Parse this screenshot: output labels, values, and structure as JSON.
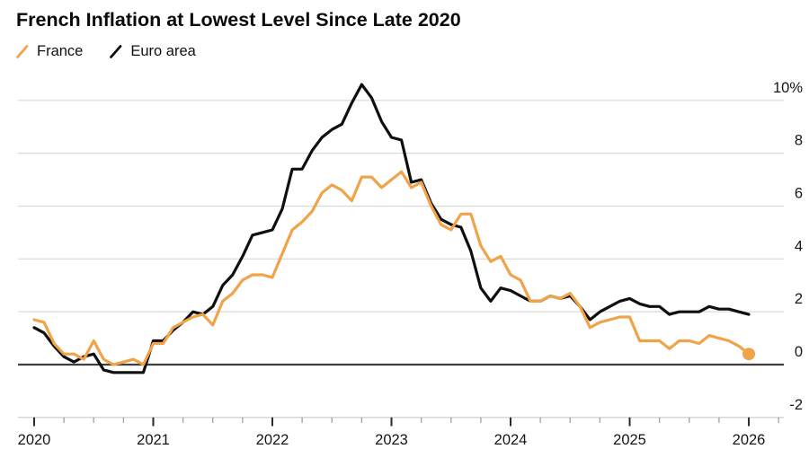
{
  "header": {
    "title": "French Inflation at Lowest Level Since Late 2020"
  },
  "legend": [
    {
      "label": "France",
      "color": "#F0A348"
    },
    {
      "label": "Euro area",
      "color": "#0f0f0f"
    }
  ],
  "colors": {
    "france": "#F0A348",
    "euro_area": "#0f0f0f",
    "gridline": "#d8d8d8",
    "zero_line": "#3f3f3f",
    "major_tick": "#2a2a2a",
    "minor_tick": "#a8a8a8",
    "axis_base": "#d2d2d2"
  },
  "chart_data": {
    "type": "line",
    "title": "French Inflation at Lowest Level Since Late 2020",
    "unit": "percent, year-over-year",
    "frequency": "monthly",
    "x_start": "2020-01",
    "x_end": "2026-01",
    "x_tick_labels": [
      "2020",
      "2021",
      "2022",
      "2023",
      "2024",
      "2025",
      "2026"
    ],
    "y_ticks": [
      10,
      8,
      6,
      4,
      2,
      0,
      -2
    ],
    "y_tick_labels": [
      "10%",
      "8",
      "6",
      "4",
      "2",
      "0",
      "-2"
    ],
    "ylim": [
      -2,
      10.6
    ],
    "grid": "horizontal",
    "zero_line": true,
    "legend_position": "top-left",
    "series": [
      {
        "name": "France",
        "color": "#F0A348",
        "end_marker": true,
        "values": [
          1.7,
          1.6,
          0.8,
          0.4,
          0.4,
          0.2,
          0.9,
          0.2,
          0.0,
          0.1,
          0.2,
          0.0,
          0.8,
          0.8,
          1.4,
          1.6,
          1.8,
          1.9,
          1.5,
          2.4,
          2.7,
          3.2,
          3.4,
          3.4,
          3.3,
          4.2,
          5.1,
          5.4,
          5.8,
          6.5,
          6.8,
          6.6,
          6.2,
          7.1,
          7.1,
          6.7,
          7.0,
          7.3,
          6.7,
          6.9,
          6.0,
          5.3,
          5.1,
          5.7,
          5.7,
          4.5,
          3.9,
          4.1,
          3.4,
          3.2,
          2.4,
          2.4,
          2.6,
          2.5,
          2.7,
          2.2,
          1.4,
          1.6,
          1.7,
          1.8,
          1.8,
          0.9,
          0.9,
          0.9,
          0.6,
          0.9,
          0.9,
          0.8,
          1.1,
          1.0,
          0.9,
          0.7,
          0.4
        ]
      },
      {
        "name": "Euro area",
        "color": "#0f0f0f",
        "end_marker": false,
        "values": [
          1.4,
          1.2,
          0.7,
          0.3,
          0.1,
          0.3,
          0.4,
          -0.2,
          -0.3,
          -0.3,
          -0.3,
          -0.3,
          0.9,
          0.9,
          1.3,
          1.6,
          2.0,
          1.9,
          2.2,
          3.0,
          3.4,
          4.1,
          4.9,
          5.0,
          5.1,
          5.9,
          7.4,
          7.4,
          8.1,
          8.6,
          8.9,
          9.1,
          9.9,
          10.6,
          10.1,
          9.2,
          8.6,
          8.5,
          6.9,
          7.0,
          6.1,
          5.5,
          5.3,
          5.2,
          4.3,
          2.9,
          2.4,
          2.9,
          2.8,
          2.6,
          2.4,
          2.4,
          2.6,
          2.5,
          2.6,
          2.2,
          1.7,
          2.0,
          2.2,
          2.4,
          2.5,
          2.3,
          2.2,
          2.2,
          1.9,
          2.0,
          2.0,
          2.0,
          2.2,
          2.1,
          2.1,
          2.0,
          1.9
        ]
      }
    ]
  }
}
